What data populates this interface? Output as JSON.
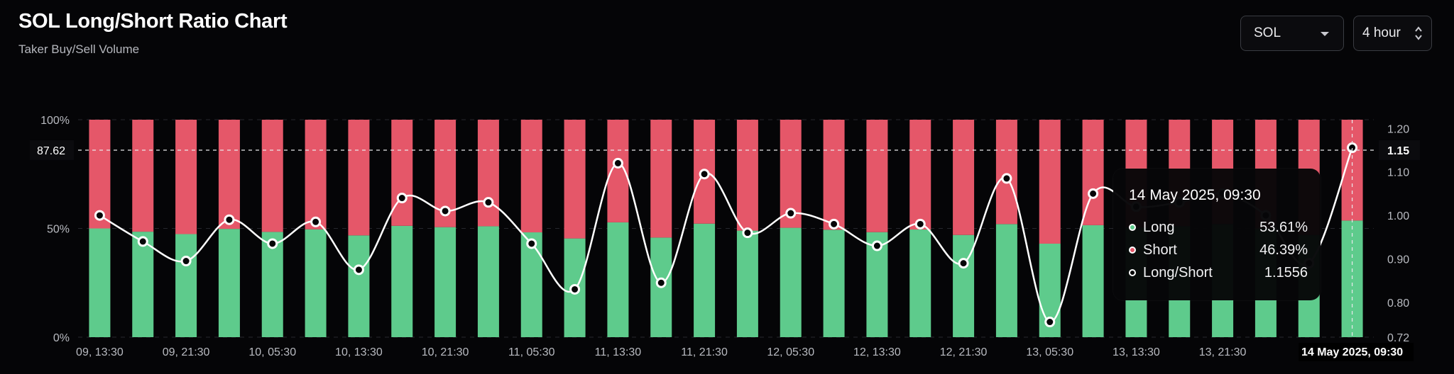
{
  "header": {
    "title": "SOL Long/Short Ratio Chart",
    "subtitle": "Taker Buy/Sell Volume"
  },
  "controls": {
    "asset": "SOL",
    "interval": "4 hour"
  },
  "colors": {
    "long": "#5ecb8c",
    "short": "#e55769",
    "ratio_line": "#ffffff",
    "background": "#050507"
  },
  "chart_data": {
    "type": "bar",
    "stacked": true,
    "title": "SOL Long/Short Ratio Chart",
    "subtitle": "Taker Buy/Sell Volume",
    "x_tick_labels": [
      "09, 13:30",
      "09, 21:30",
      "10, 05:30",
      "10, 13:30",
      "10, 21:30",
      "11, 05:30",
      "11, 13:30",
      "11, 21:30",
      "12, 05:30",
      "12, 13:30",
      "12, 21:30",
      "13, 05:30",
      "13, 13:30",
      "13, 21:30",
      "14"
    ],
    "y_left_ticks": [
      "0%",
      "50%",
      "100%"
    ],
    "y_right_ticks": [
      "0.72",
      "0.80",
      "0.90",
      "1.00",
      "1.10",
      "1.20"
    ],
    "ylim_left": [
      0,
      100
    ],
    "ylim_right": [
      0.72,
      1.22
    ],
    "crosshair": {
      "left_value": "87.62",
      "right_value": "1.15",
      "x_label": "14 May 2025, 09:30"
    },
    "series": [
      {
        "name": "Long",
        "axis": "left",
        "values": [
          50.0,
          48.5,
          47.4,
          49.8,
          48.4,
          49.6,
          46.8,
          51.2,
          50.6,
          51.0,
          48.2,
          45.4,
          52.8,
          45.8,
          52.2,
          49.0,
          50.3,
          49.4,
          48.3,
          49.5,
          47.0,
          52.0,
          43.0,
          51.5,
          50.5,
          51.0,
          52.0,
          50.0,
          47.0,
          53.61
        ]
      },
      {
        "name": "Short",
        "axis": "left",
        "values": [
          50.0,
          51.5,
          52.6,
          50.2,
          51.6,
          50.4,
          53.2,
          48.8,
          49.4,
          49.0,
          51.8,
          54.6,
          47.2,
          54.2,
          47.8,
          51.0,
          49.7,
          50.6,
          51.7,
          50.5,
          53.0,
          48.0,
          57.0,
          48.5,
          49.5,
          49.0,
          48.0,
          50.0,
          53.0,
          46.39
        ]
      },
      {
        "name": "Long/Short",
        "axis": "right",
        "type": "line",
        "values": [
          1.0,
          0.94,
          0.895,
          0.99,
          0.935,
          0.985,
          0.875,
          1.04,
          1.01,
          1.03,
          0.935,
          0.83,
          1.12,
          0.845,
          1.095,
          0.96,
          1.005,
          0.98,
          0.93,
          0.98,
          0.89,
          1.085,
          0.755,
          1.05,
          1.02,
          1.03,
          1.05,
          1.0,
          0.89,
          1.1556
        ]
      }
    ]
  },
  "tooltip": {
    "title": "14 May 2025, 09:30",
    "rows": [
      {
        "label": "Long",
        "value": "53.61%"
      },
      {
        "label": "Short",
        "value": "46.39%"
      },
      {
        "label": "Long/Short",
        "value": "1.1556"
      }
    ]
  }
}
